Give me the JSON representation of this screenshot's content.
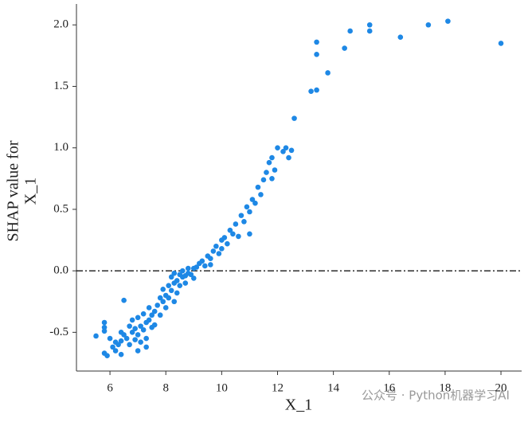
{
  "chart_data": {
    "type": "scatter",
    "xlabel": "X_1",
    "ylabel": [
      "SHAP value for",
      "X_1"
    ],
    "color": "#1e88e5",
    "hline": 0,
    "watermark": "公众号 · Python机器学习AI",
    "xlim": [
      4.8,
      20.74
    ],
    "ylim": [
      -0.815,
      2.17
    ],
    "xticks": [
      6,
      8,
      10,
      12,
      14,
      16,
      18,
      20
    ],
    "yticks": [
      -0.5,
      {
        "value": 0,
        "label": "0.0"
      },
      {
        "value": 0.5,
        "label": "0.5"
      },
      {
        "value": 1,
        "label": "1.0"
      },
      {
        "value": 1.5,
        "label": "1.5"
      },
      {
        "value": 2,
        "label": "2.0"
      }
    ],
    "x": [
      12.6,
      13.2,
      13.4,
      13.4,
      13.4,
      13.8,
      14.4,
      14.6,
      15.3,
      15.3,
      16.4,
      17.4,
      18.1,
      20.0,
      5.5,
      5.8,
      5.8,
      5.8,
      5.8,
      5.9,
      6.1,
      6.2,
      6.4,
      6.5,
      6.4,
      6.6,
      6.7,
      6.7,
      6.8,
      6.8,
      6.9,
      6.9,
      7.0,
      7.0,
      7.1,
      7.1,
      7.2,
      7.2,
      7.3,
      7.3,
      7.4,
      7.4,
      7.5,
      7.5,
      7.6,
      7.6,
      7.7,
      7.8,
      7.8,
      7.9,
      7.9,
      8.0,
      8.0,
      8.1,
      8.1,
      8.2,
      8.2,
      8.3,
      8.3,
      8.4,
      8.4,
      8.5,
      8.5,
      8.6,
      8.6,
      8.7,
      8.7,
      8.8,
      8.8,
      8.9,
      9.0,
      9.0,
      9.1,
      9.2,
      9.3,
      9.4,
      9.5,
      9.6,
      9.7,
      9.8,
      9.9,
      10.0,
      10.0,
      10.1,
      10.2,
      10.3,
      10.4,
      10.5,
      10.6,
      10.7,
      10.8,
      10.9,
      11.0,
      11.0,
      11.1,
      11.2,
      11.3,
      11.4,
      11.5,
      11.6,
      11.7,
      11.8,
      11.8,
      11.9,
      12.0,
      12.2,
      12.3,
      12.5,
      12.4,
      6.3,
      6.0,
      6.2,
      6.5,
      6.4,
      7.3,
      7.0,
      8.3,
      9.6
    ],
    "y": [
      1.24,
      1.46,
      1.47,
      1.76,
      1.86,
      1.61,
      1.81,
      1.95,
      1.95,
      2.0,
      1.9,
      2.0,
      2.03,
      1.85,
      -0.53,
      -0.49,
      -0.46,
      -0.42,
      -0.67,
      -0.69,
      -0.62,
      -0.65,
      -0.68,
      -0.24,
      -0.5,
      -0.55,
      -0.45,
      -0.6,
      -0.5,
      -0.4,
      -0.56,
      -0.47,
      -0.52,
      -0.38,
      -0.45,
      -0.58,
      -0.48,
      -0.35,
      -0.42,
      -0.55,
      -0.4,
      -0.3,
      -0.46,
      -0.36,
      -0.33,
      -0.44,
      -0.28,
      -0.36,
      -0.22,
      -0.25,
      -0.15,
      -0.2,
      -0.3,
      -0.12,
      -0.22,
      -0.16,
      -0.05,
      -0.1,
      -0.02,
      -0.08,
      -0.18,
      -0.03,
      -0.12,
      -0.05,
      0.0,
      -0.04,
      -0.1,
      -0.02,
      0.02,
      -0.03,
      0.02,
      -0.06,
      0.03,
      0.06,
      0.08,
      0.04,
      0.12,
      0.1,
      0.16,
      0.2,
      0.14,
      0.25,
      0.18,
      0.27,
      0.22,
      0.33,
      0.3,
      0.38,
      0.28,
      0.45,
      0.4,
      0.52,
      0.48,
      0.3,
      0.58,
      0.55,
      0.68,
      0.62,
      0.74,
      0.8,
      0.88,
      0.92,
      0.75,
      0.82,
      1.0,
      0.97,
      1.0,
      0.98,
      0.92,
      -0.6,
      -0.55,
      -0.58,
      -0.52,
      -0.57,
      -0.62,
      -0.65,
      -0.25,
      0.05
    ]
  }
}
